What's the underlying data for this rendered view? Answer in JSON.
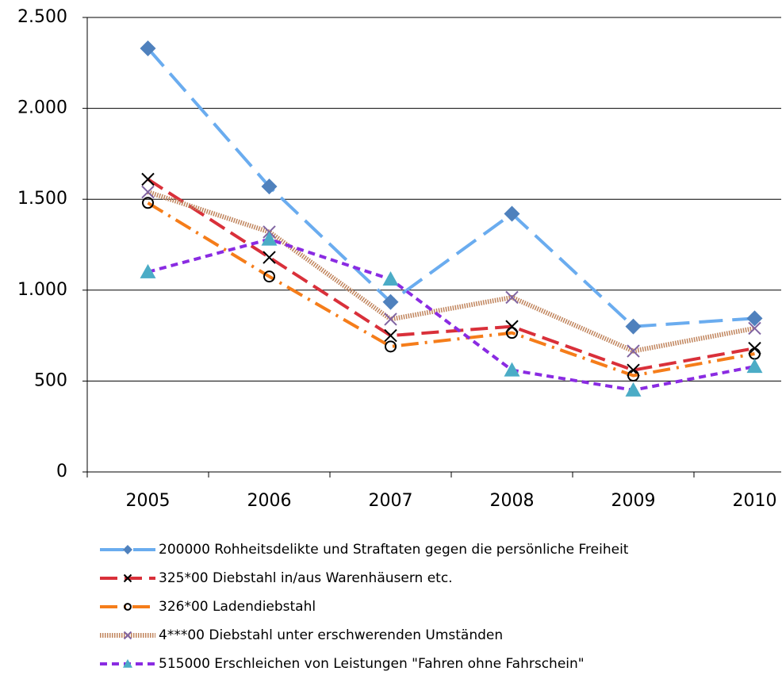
{
  "chart_data": {
    "type": "line",
    "categories": [
      "2005",
      "2006",
      "2007",
      "2008",
      "2009",
      "2010"
    ],
    "ylim": [
      0,
      2500
    ],
    "yticks": [
      0,
      500,
      {
        "value": 1000,
        "label": "1.000"
      },
      {
        "value": 1500,
        "label": "1.500"
      },
      {
        "value": 2000,
        "label": "2.000"
      },
      {
        "value": 2500,
        "label": "2.500"
      }
    ],
    "grid": true,
    "legend": "bottom",
    "series": [
      {
        "name": "200000 Rohheitsdelikte und Straftaten gegen die persönliche Freiheit",
        "color": "#6aacef",
        "dash": "30,12",
        "marker": "diamond",
        "marker_color": "#4f81bd",
        "values": [
          2330,
          1570,
          935,
          1420,
          800,
          845
        ]
      },
      {
        "name": "325*00 Diebstahl in/aus Warenhäusern etc.",
        "color": "#d9303a",
        "dash": "22,9",
        "marker": "x",
        "marker_color": "#000000",
        "values": [
          1610,
          1180,
          750,
          800,
          560,
          680
        ]
      },
      {
        "name": "326*00 Ladendiebstahl",
        "color": "#f57d1a",
        "dash": "22,8,3,8",
        "marker": "circle",
        "marker_color": "#000000",
        "values": [
          1480,
          1075,
          690,
          765,
          530,
          650
        ]
      },
      {
        "name": "4***00 Diebstahl unter erschwerenden Umständen",
        "color": "#c0845c",
        "dash": "1.5,1.5",
        "marker": "x",
        "marker_color": "#8064a2",
        "values": [
          1540,
          1320,
          840,
          960,
          665,
          790
        ]
      },
      {
        "name": "515000 Erschleichen von Leistungen \"Fahren ohne Fahrschein\"",
        "color": "#8a2be2",
        "dash": "9,6",
        "marker": "triangle",
        "marker_color": "#4bacc6",
        "values": [
          1100,
          1280,
          1060,
          560,
          450,
          580
        ]
      }
    ]
  }
}
